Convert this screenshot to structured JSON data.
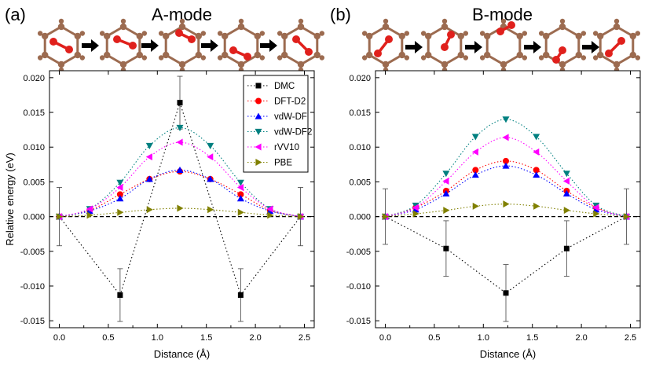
{
  "panels": [
    {
      "label": "(a)",
      "title": "A-mode"
    },
    {
      "label": "(b)",
      "title": "B-mode"
    }
  ],
  "colors": {
    "DMC": "#000000",
    "DFT-D2": "#ff0000",
    "vdW-DF": "#0000ff",
    "vdW-DF2": "#008080",
    "rVV10": "#ff00ff",
    "PBE": "#808000",
    "carbon": "#9c6b50",
    "oxygen": "#e0201c"
  },
  "chart_data": [
    {
      "type": "line",
      "panel": "A-mode",
      "xlabel": "Distance (Å)",
      "ylabel": "Relative energy (eV)",
      "xlim": [
        -0.1,
        2.6
      ],
      "ylim": [
        -0.016,
        0.021
      ],
      "xticks": [
        "0.0",
        "0.5",
        "1.0",
        "1.5",
        "2.0",
        "2.5"
      ],
      "yticks": [
        "-0.015",
        "-0.010",
        "-0.005",
        "0.000",
        "0.005",
        "0.010",
        "0.015",
        "0.020"
      ],
      "legend": [
        "DMC",
        "DFT-D2",
        "vdW-DF",
        "vdW-DF2",
        "rVV10",
        "PBE"
      ],
      "legend_position": "top-right",
      "series": [
        {
          "name": "DMC",
          "marker": "square",
          "x": [
            0.0,
            0.62,
            1.23,
            1.85,
            2.46
          ],
          "y": [
            0.0,
            -0.0113,
            0.0164,
            -0.0113,
            0.0
          ],
          "err": [
            0.0042,
            0.0038,
            0.0038,
            0.0038,
            0.0042
          ]
        },
        {
          "name": "DFT-D2",
          "marker": "circle",
          "x": [
            0.0,
            0.31,
            0.62,
            0.92,
            1.23,
            1.54,
            1.85,
            2.15,
            2.46
          ],
          "y": [
            0.0,
            0.0009,
            0.0032,
            0.0054,
            0.0065,
            0.0054,
            0.0032,
            0.0009,
            0.0
          ]
        },
        {
          "name": "vdW-DF",
          "marker": "triangle-up",
          "x": [
            0.0,
            0.31,
            0.62,
            0.92,
            1.23,
            1.54,
            1.85,
            2.15,
            2.46
          ],
          "y": [
            0.0,
            0.0008,
            0.0026,
            0.0054,
            0.0067,
            0.0054,
            0.0026,
            0.0008,
            0.0
          ]
        },
        {
          "name": "vdW-DF2",
          "marker": "triangle-down",
          "x": [
            0.0,
            0.31,
            0.62,
            0.92,
            1.23,
            1.54,
            1.85,
            2.15,
            2.46
          ],
          "y": [
            0.0,
            0.0011,
            0.0049,
            0.0102,
            0.0128,
            0.0102,
            0.0049,
            0.0011,
            0.0
          ]
        },
        {
          "name": "rVV10",
          "marker": "triangle-left",
          "x": [
            0.0,
            0.31,
            0.62,
            0.92,
            1.23,
            1.54,
            1.85,
            2.15,
            2.46
          ],
          "y": [
            0.0,
            0.0011,
            0.0042,
            0.0086,
            0.0107,
            0.0086,
            0.0042,
            0.0011,
            0.0
          ]
        },
        {
          "name": "PBE",
          "marker": "triangle-right",
          "x": [
            0.0,
            0.31,
            0.62,
            0.92,
            1.23,
            1.54,
            1.85,
            2.15,
            2.46
          ],
          "y": [
            0.0,
            0.0002,
            0.0006,
            0.001,
            0.0012,
            0.001,
            0.0006,
            0.0002,
            0.0
          ]
        }
      ]
    },
    {
      "type": "line",
      "panel": "B-mode",
      "xlabel": "Distance (Å)",
      "ylabel": "",
      "xlim": [
        -0.1,
        2.6
      ],
      "ylim": [
        -0.016,
        0.021
      ],
      "xticks": [
        "0.0",
        "0.5",
        "1.0",
        "1.5",
        "2.0",
        "2.5"
      ],
      "yticks": [
        "-0.015",
        "-0.010",
        "-0.005",
        "0.000",
        "0.005",
        "0.010",
        "0.015",
        "0.020"
      ],
      "series": [
        {
          "name": "DMC",
          "marker": "square",
          "x": [
            0.0,
            0.62,
            1.23,
            1.85,
            2.46
          ],
          "y": [
            0.0,
            -0.0046,
            -0.011,
            -0.0046,
            0.0
          ],
          "err": [
            0.004,
            0.004,
            0.0041,
            0.004,
            0.004
          ]
        },
        {
          "name": "DFT-D2",
          "marker": "circle",
          "x": [
            0.0,
            0.31,
            0.62,
            0.92,
            1.23,
            1.54,
            1.85,
            2.15,
            2.46
          ],
          "y": [
            0.0,
            0.0013,
            0.0037,
            0.0067,
            0.008,
            0.0067,
            0.0037,
            0.0013,
            0.0
          ]
        },
        {
          "name": "vdW-DF",
          "marker": "triangle-up",
          "x": [
            0.0,
            0.31,
            0.62,
            0.92,
            1.23,
            1.54,
            1.85,
            2.15,
            2.46
          ],
          "y": [
            0.0,
            0.001,
            0.0033,
            0.006,
            0.0073,
            0.006,
            0.0033,
            0.001,
            0.0
          ]
        },
        {
          "name": "vdW-DF2",
          "marker": "triangle-down",
          "x": [
            0.0,
            0.31,
            0.62,
            0.92,
            1.23,
            1.54,
            1.85,
            2.15,
            2.46
          ],
          "y": [
            0.0,
            0.0016,
            0.0062,
            0.0115,
            0.014,
            0.0115,
            0.0062,
            0.0016,
            0.0
          ]
        },
        {
          "name": "rVV10",
          "marker": "triangle-left",
          "x": [
            0.0,
            0.31,
            0.62,
            0.92,
            1.23,
            1.54,
            1.85,
            2.15,
            2.46
          ],
          "y": [
            0.0,
            0.0013,
            0.0051,
            0.0093,
            0.0114,
            0.0093,
            0.0051,
            0.0013,
            0.0
          ]
        },
        {
          "name": "PBE",
          "marker": "triangle-right",
          "x": [
            0.0,
            0.31,
            0.62,
            0.92,
            1.23,
            1.54,
            1.85,
            2.15,
            2.46
          ],
          "y": [
            0.0,
            0.0004,
            0.0009,
            0.0015,
            0.0018,
            0.0015,
            0.0009,
            0.0004,
            0.0
          ]
        }
      ]
    }
  ]
}
